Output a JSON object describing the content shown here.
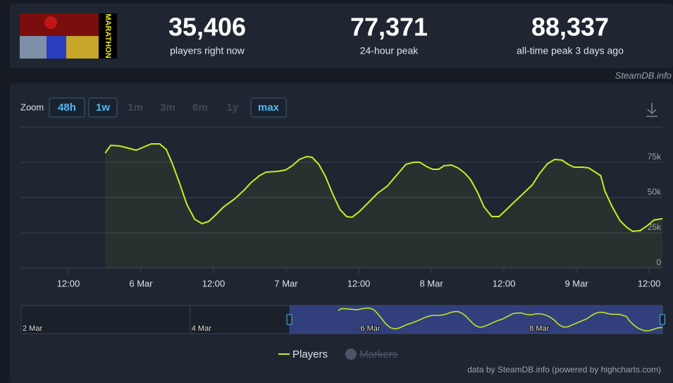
{
  "header": {
    "image_text": "MARATHON",
    "stats": [
      {
        "value": "35,406",
        "label": "players right now"
      },
      {
        "value": "77,371",
        "label": "24-hour peak"
      },
      {
        "value": "88,337",
        "label": "all-time peak 3 days ago"
      }
    ],
    "source": "SteamDB.info"
  },
  "zoom": {
    "label": "Zoom",
    "buttons": [
      {
        "text": "48h",
        "enabled": true
      },
      {
        "text": "1w",
        "enabled": true
      },
      {
        "text": "1m",
        "enabled": false
      },
      {
        "text": "3m",
        "enabled": false
      },
      {
        "text": "6m",
        "enabled": false
      },
      {
        "text": "1y",
        "enabled": false
      },
      {
        "text": "max",
        "enabled": true
      }
    ]
  },
  "chart_data": {
    "type": "line",
    "x": [
      18.1,
      19.0,
      20.5,
      21.9,
      23.2,
      24.3,
      25.7,
      27.1,
      28.2,
      29.2,
      30.4,
      31.6,
      32.9,
      34.1,
      35.2,
      36.3,
      37.7,
      39.5,
      41.0,
      42.2,
      43.6,
      44.7,
      46.5,
      47.9,
      49.0,
      50.2,
      51.4,
      52.3,
      53.4,
      54.5,
      55.7,
      56.9,
      58.0,
      58.9,
      60.1,
      61.5,
      63.1,
      64.7,
      65.7,
      66.9,
      67.8,
      69.1,
      70.1,
      71.2,
      72.2,
      73.2,
      74.1,
      75.3,
      76.4,
      77.6,
      78.5,
      79.6,
      80.7,
      82.0,
      83.2,
      84.3,
      85.5,
      87.0,
      88.7,
      89.9,
      91.2,
      92.4,
      93.6,
      94.6,
      95.6,
      96.9,
      98.0,
      100.0,
      100.7,
      101.9,
      103.2,
      104.4,
      105.3,
      106.5,
      107.7,
      108.8,
      110.2
    ],
    "series": [
      {
        "name": "Players",
        "color": "#c7ee1f",
        "values": [
          81500,
          87000,
          86500,
          85000,
          83500,
          85500,
          88000,
          88000,
          84000,
          74000,
          60000,
          45000,
          34500,
          31500,
          33000,
          37500,
          43500,
          49000,
          55000,
          60500,
          65500,
          68000,
          68500,
          69500,
          72500,
          77000,
          79000,
          78500,
          73500,
          65000,
          52500,
          41500,
          36500,
          36000,
          40000,
          46000,
          53000,
          58000,
          63000,
          69000,
          73500,
          75000,
          75000,
          72000,
          70000,
          70000,
          72500,
          73000,
          71000,
          67000,
          62500,
          54000,
          43500,
          36500,
          36500,
          41000,
          46000,
          52000,
          59000,
          67000,
          74000,
          77000,
          76500,
          73500,
          71500,
          71500,
          71000,
          65500,
          54500,
          43500,
          33500,
          28500,
          26000,
          26500,
          30000,
          34000,
          35000
        ]
      },
      {
        "name": "Markers",
        "color": "#4a5568",
        "hidden": true
      }
    ],
    "xlim": [
      4.2,
      110.2
    ],
    "xticks": [
      {
        "value": 12,
        "label": "12:00"
      },
      {
        "value": 24,
        "label": "6 Mar"
      },
      {
        "value": 36,
        "label": "12:00"
      },
      {
        "value": 48,
        "label": "7 Mar"
      },
      {
        "value": 60,
        "label": "12:00"
      },
      {
        "value": 72,
        "label": "8 Mar"
      },
      {
        "value": 84,
        "label": "12:00"
      },
      {
        "value": 96,
        "label": "9 Mar"
      },
      {
        "value": 108,
        "label": "12:00"
      }
    ],
    "ylim": [
      0,
      100000
    ],
    "yticks": [
      0,
      {
        "value": 25000,
        "label": "25k"
      },
      {
        "value": 50000,
        "label": "50k"
      },
      {
        "value": 75000,
        "label": "75k"
      }
    ],
    "grid": true,
    "navigator": {
      "xlim": [
        -72,
        110.2
      ],
      "xticks": [
        {
          "value": -72,
          "label": "2 Mar"
        },
        {
          "value": -24,
          "label": "4 Mar"
        },
        {
          "value": 24,
          "label": "6 Mar"
        },
        {
          "value": 72,
          "label": "8 Mar"
        }
      ]
    },
    "credit": "data by SteamDB.info (powered by highcharts.com)"
  }
}
